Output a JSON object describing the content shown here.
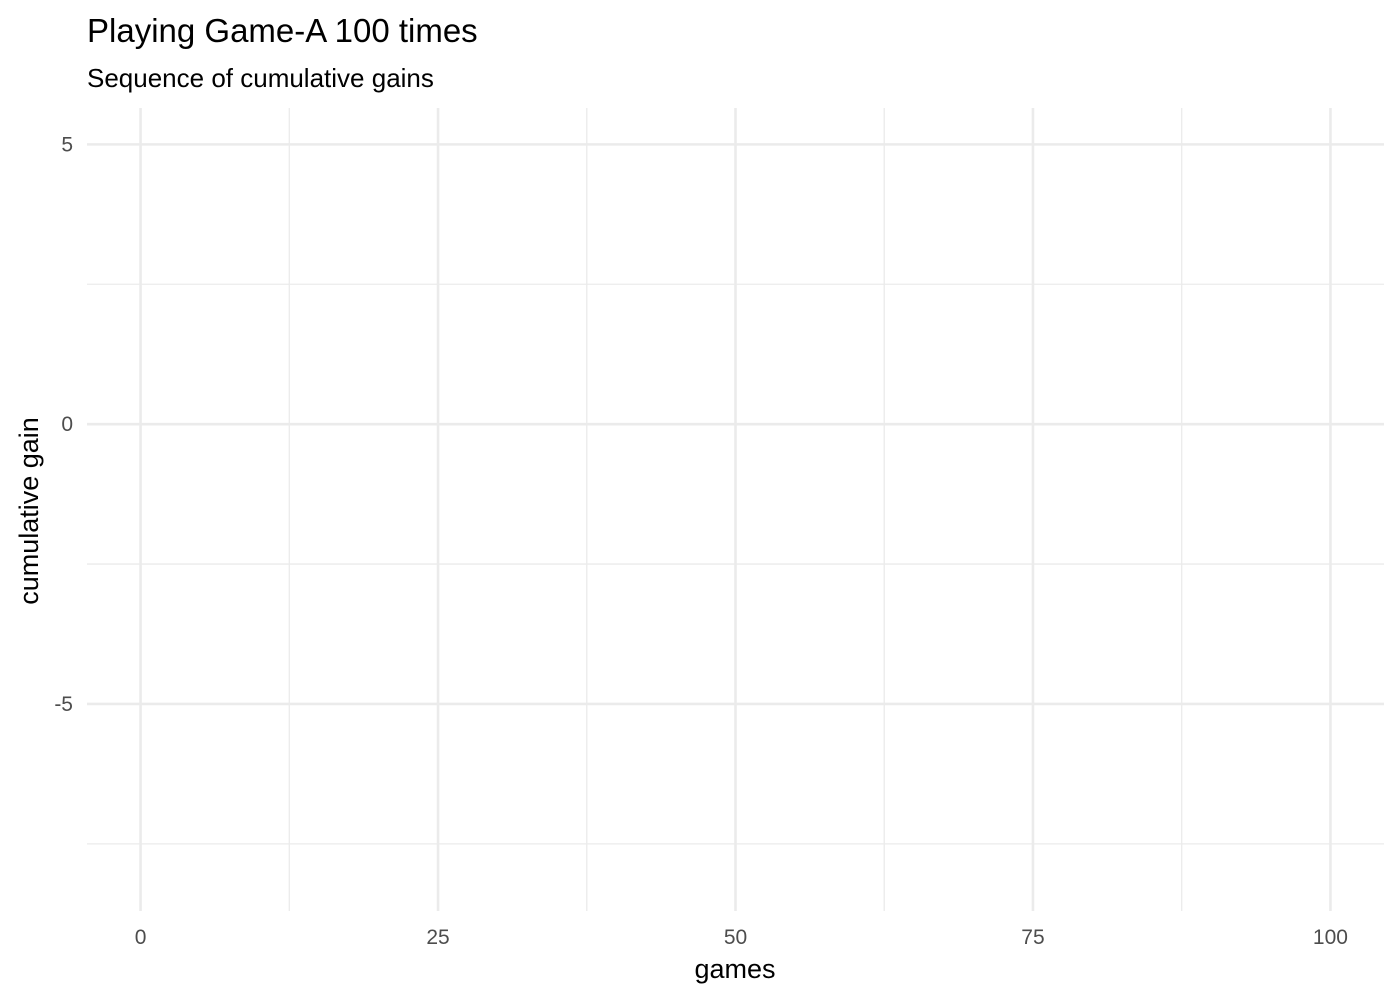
{
  "chart_data": {
    "type": "line",
    "title": "Playing Game-A 100 times",
    "subtitle": "Sequence of cumulative gains",
    "xlabel": "games",
    "ylabel": "cumulative gain",
    "xlim": [
      -4.5,
      104.5
    ],
    "ylim": [
      -8.7,
      5.65
    ],
    "x_ticks": [
      0,
      25,
      50,
      75,
      100
    ],
    "x_tick_labels": [
      "0",
      "25",
      "50",
      "75",
      "100"
    ],
    "x_minor_ticks": [
      12.5,
      37.5,
      62.5,
      87.5
    ],
    "y_ticks": [
      -5,
      0,
      5
    ],
    "y_tick_labels": [
      "-5",
      "0",
      "5"
    ],
    "y_minor_ticks": [
      -7.5,
      -2.5,
      2.5
    ],
    "grid": true,
    "legend": "none",
    "series": [],
    "colors": {
      "background": "#ffffff",
      "grid_major": "#ebebeb",
      "grid_minor": "#ebebeb",
      "tick_text": "#4d4d4d",
      "title_text": "#000000"
    }
  }
}
